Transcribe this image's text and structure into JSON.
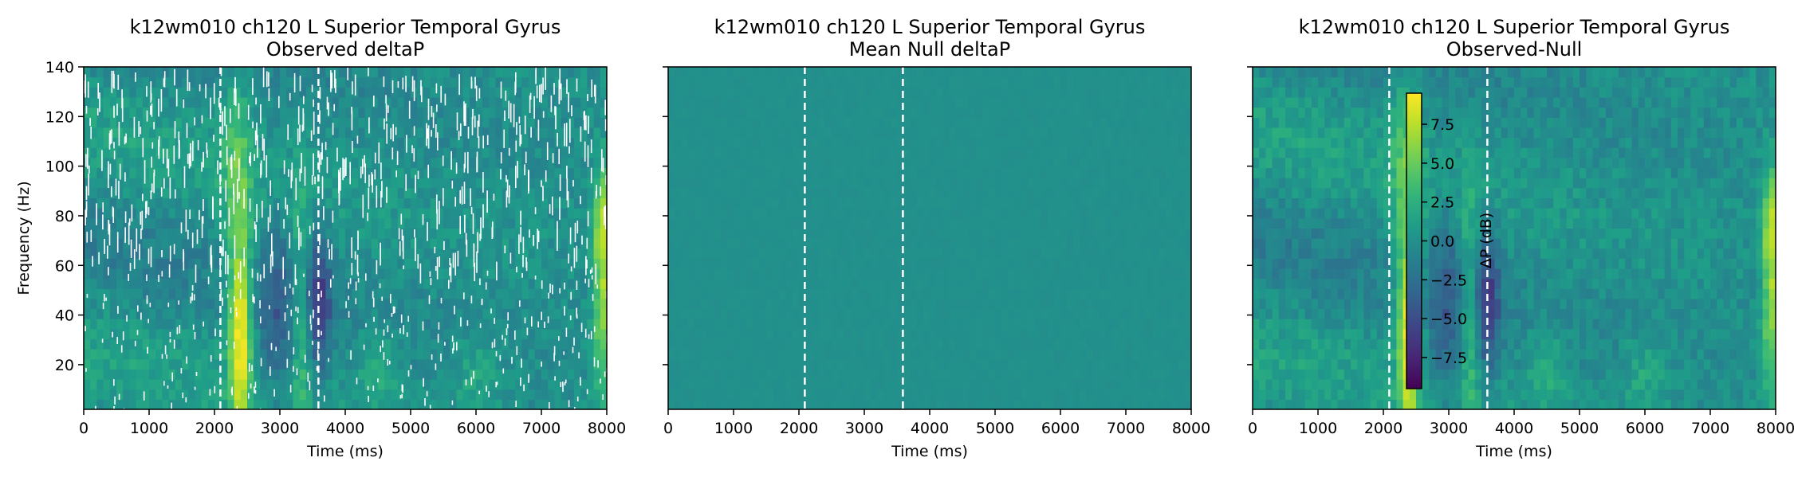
{
  "chart_data": [
    {
      "type": "heatmap",
      "title": "k12wm010 ch120 L Superior Temporal Gyrus",
      "subtitle": "Observed deltaP",
      "xlabel": "Time (ms)",
      "ylabel": "Frequency (Hz)",
      "xlim": [
        0,
        8000
      ],
      "ylim": [
        2,
        140
      ],
      "xticks": [
        "0",
        "1000",
        "2000",
        "3000",
        "4000",
        "5000",
        "6000",
        "7000",
        "8000"
      ],
      "yticks": [
        "20",
        "40",
        "60",
        "80",
        "100",
        "120",
        "140"
      ],
      "event_lines_ms": [
        2090,
        3590
      ],
      "masked_nonsignificant": true
    },
    {
      "type": "heatmap",
      "title": "k12wm010 ch120 L Superior Temporal Gyrus",
      "subtitle": "Mean Null deltaP",
      "xlabel": "Time (ms)",
      "ylabel": "",
      "xlim": [
        0,
        8000
      ],
      "ylim": [
        2,
        140
      ],
      "xticks": [
        "0",
        "1000",
        "2000",
        "3000",
        "4000",
        "5000",
        "6000",
        "7000",
        "8000"
      ],
      "yticks": [],
      "event_lines_ms": [
        2090,
        3590
      ],
      "uniform_value_db": 0.0
    },
    {
      "type": "heatmap",
      "title": "k12wm010 ch120 L Superior Temporal Gyrus",
      "subtitle": "Observed-Null",
      "xlabel": "Time (ms)",
      "ylabel": "",
      "xlim": [
        0,
        8000
      ],
      "ylim": [
        2,
        140
      ],
      "xticks": [
        "0",
        "1000",
        "2000",
        "3000",
        "4000",
        "5000",
        "6000",
        "7000",
        "8000"
      ],
      "yticks": [],
      "event_lines_ms": [
        2090,
        3590
      ],
      "colorbar": {
        "label": "ΔP (dB)",
        "range": [
          -9.5,
          9.5
        ],
        "ticks": [
          "7.5",
          "5.0",
          "2.5",
          "0.0",
          "−2.5",
          "−5.0",
          "−7.5"
        ],
        "tick_values": [
          7.5,
          5.0,
          2.5,
          0.0,
          -2.5,
          -5.0,
          -7.5
        ],
        "colormap": "viridis"
      }
    }
  ],
  "colors": {
    "viridis": [
      "#440154",
      "#482878",
      "#3e4989",
      "#31688e",
      "#26828e",
      "#1f9e89",
      "#35b779",
      "#6ece58",
      "#b5de2b",
      "#fde725"
    ],
    "event_line": "#ffffff",
    "axis": "#000000"
  }
}
